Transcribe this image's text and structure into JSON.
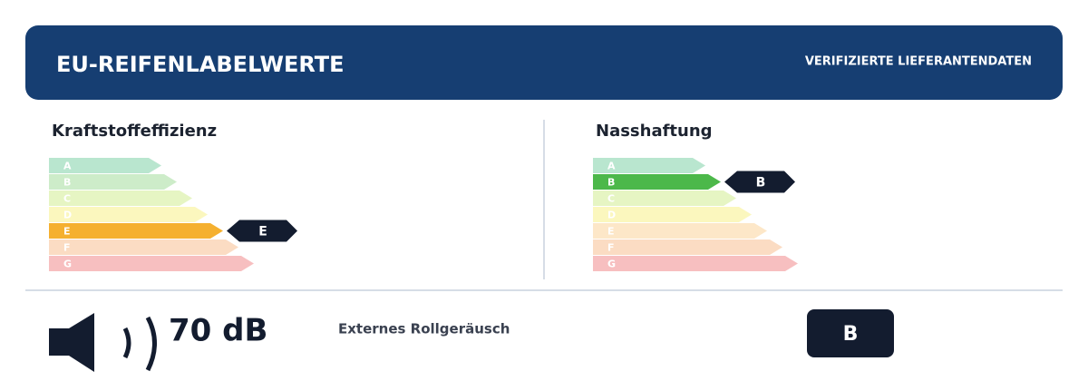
{
  "header": {
    "title": "EU-REIFENLABELWERTE",
    "badge": "VERIFIZIERTE LIEFERANTENDATEN"
  },
  "fuel": {
    "title": "Kraftstoffeffizienz",
    "classes": [
      "A",
      "B",
      "C",
      "D",
      "E",
      "F",
      "G"
    ],
    "rating": "E"
  },
  "wet": {
    "title": "Nasshaftung",
    "classes": [
      "A",
      "B",
      "C",
      "D",
      "E",
      "F",
      "G"
    ],
    "rating": "B"
  },
  "noise": {
    "value": "70 dB",
    "label": "Externes Rollgeräusch",
    "class": "B"
  }
}
